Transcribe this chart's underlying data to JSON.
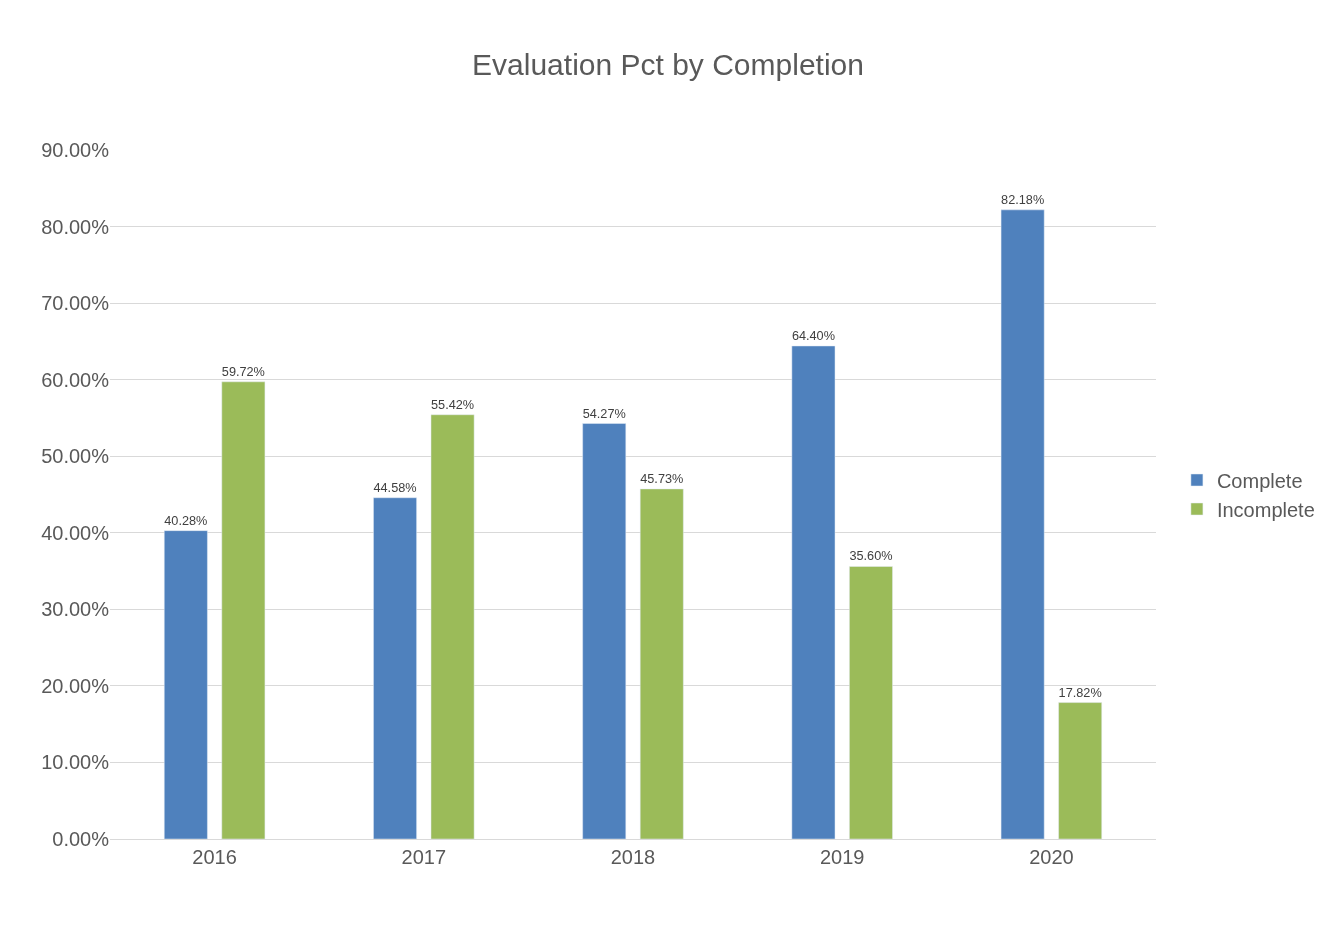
{
  "chart_data": {
    "type": "bar",
    "title": "Evaluation Pct by Completion",
    "categories": [
      "2016",
      "2017",
      "2018",
      "2019",
      "2020"
    ],
    "series": [
      {
        "name": "Complete",
        "color": "#4f81bd",
        "values": [
          40.28,
          44.58,
          54.27,
          64.4,
          82.18
        ],
        "value_labels": [
          "40.28%",
          "44.58%",
          "54.27%",
          "64.40%",
          "82.18%"
        ]
      },
      {
        "name": "Incomplete",
        "color": "#9bbb59",
        "values": [
          59.72,
          55.42,
          45.73,
          35.6,
          17.82
        ],
        "value_labels": [
          "59.72%",
          "55.42%",
          "45.73%",
          "35.60%",
          "17.82%"
        ]
      }
    ],
    "ylim": [
      0,
      90
    ],
    "yticks": [
      {
        "value": 0,
        "label": "0.00%"
      },
      {
        "value": 10,
        "label": "10.00%"
      },
      {
        "value": 20,
        "label": "20.00%"
      },
      {
        "value": 30,
        "label": "30.00%"
      },
      {
        "value": 40,
        "label": "40.00%"
      },
      {
        "value": 50,
        "label": "50.00%"
      },
      {
        "value": 60,
        "label": "60.00%"
      },
      {
        "value": 70,
        "label": "70.00%"
      },
      {
        "value": 80,
        "label": "80.00%"
      },
      {
        "value": 90,
        "label": "90.00%"
      }
    ],
    "grid": "y",
    "legend": "right"
  }
}
